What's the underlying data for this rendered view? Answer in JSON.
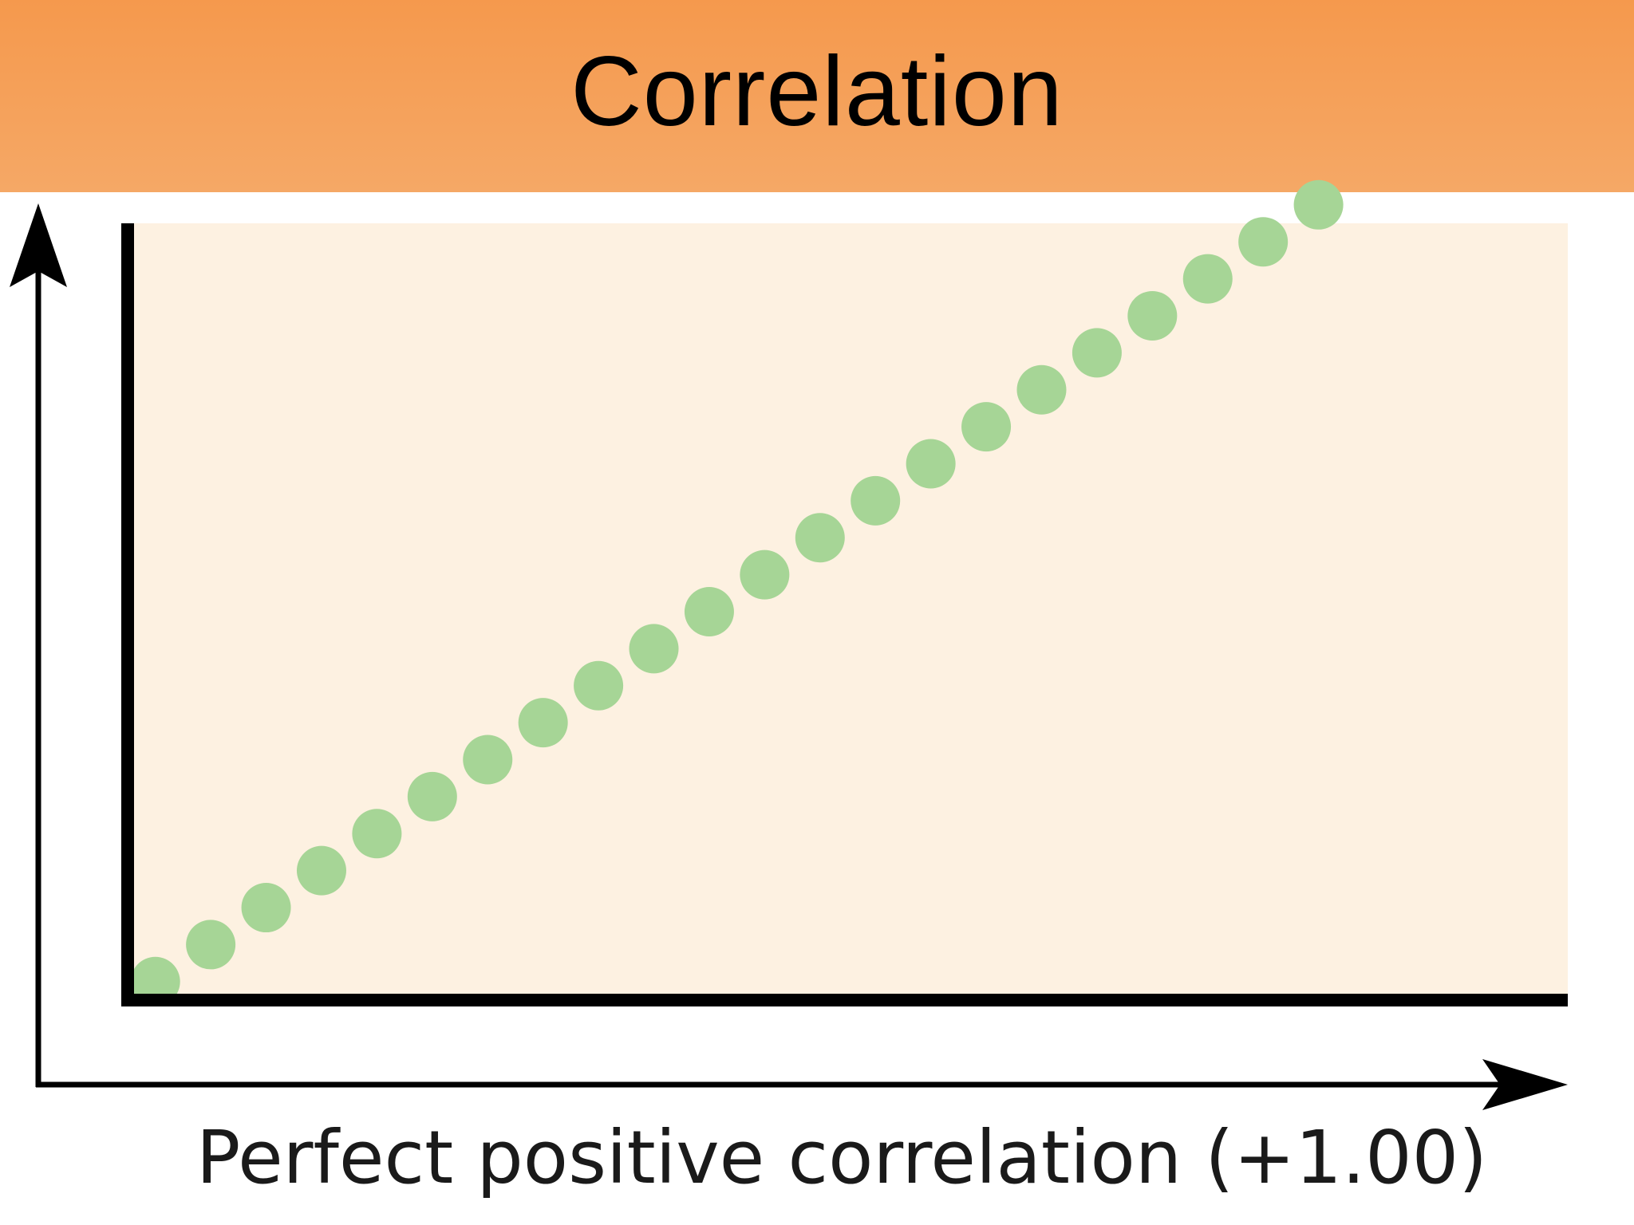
{
  "slide": {
    "title": "Correlation"
  },
  "colors": {
    "title_bar": "#f5a05a",
    "plot_background": "#fdf1e1",
    "points": "#a6d596",
    "axes": "#000000"
  },
  "chart_data": {
    "type": "scatter",
    "title": "",
    "caption": "Perfect positive correlation (+1.00)",
    "xlabel": "",
    "ylabel": "",
    "xlim": [
      0,
      26
    ],
    "ylim": [
      0,
      21
    ],
    "grid": false,
    "legend": "none",
    "ticks": false,
    "series": [
      {
        "x": [
          0.5,
          1.5,
          2.5,
          3.5,
          4.5,
          5.5,
          6.5,
          7.5,
          8.5,
          9.5,
          10.5,
          11.5,
          12.5,
          13.5,
          14.5,
          15.5,
          16.5,
          17.5,
          18.5,
          19.5,
          20.5,
          21.5
        ],
        "y": [
          0.5,
          1.5,
          2.5,
          3.5,
          4.5,
          5.5,
          6.5,
          7.5,
          8.5,
          9.5,
          10.5,
          11.5,
          12.5,
          13.5,
          14.5,
          15.5,
          16.5,
          17.5,
          18.5,
          19.5,
          20.5,
          21.5
        ]
      }
    ]
  }
}
